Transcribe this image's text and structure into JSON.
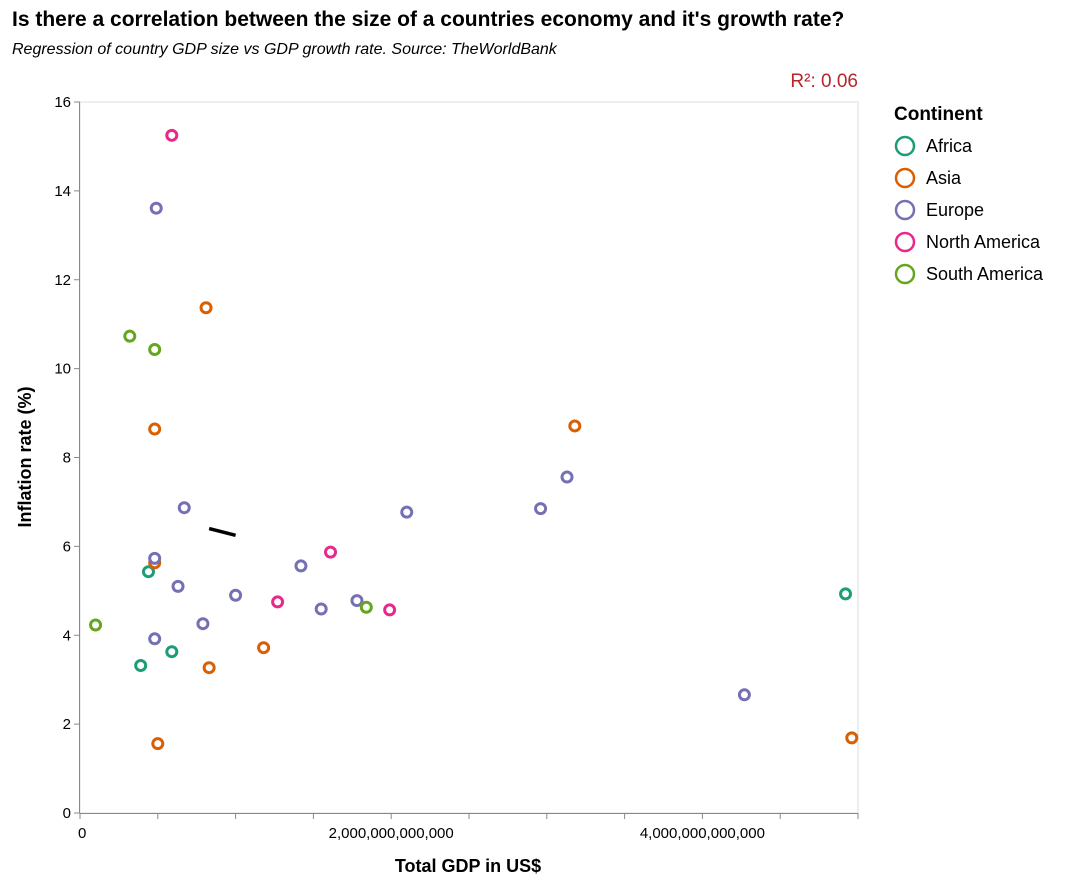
{
  "title": "Is there a correlation between the size of a countries economy and it's growth rate?",
  "subtitle": "Regression of country GDP size vs GDP growth rate. Source: TheWorldBank",
  "chart_data": {
    "type": "scatter",
    "xlabel": "Total GDP in US$",
    "ylabel": "Inflation rate (%)",
    "xlim": [
      0,
      5000000000000
    ],
    "ylim": [
      0,
      16
    ],
    "x_ticks": [
      0,
      500000000000,
      1000000000000,
      1500000000000,
      2000000000000,
      2500000000000,
      3000000000000,
      3500000000000,
      4000000000000,
      4500000000000,
      5000000000000
    ],
    "x_tick_labels": [
      "0",
      "",
      "",
      "",
      "2,000,000,000,000",
      "",
      "",
      "",
      "4,000,000,000,000",
      "",
      ""
    ],
    "y_ticks": [
      0,
      2,
      4,
      6,
      8,
      10,
      12,
      14,
      16
    ],
    "y_tick_labels": [
      "0",
      "2",
      "4",
      "6",
      "8",
      "10",
      "12",
      "14",
      "16"
    ],
    "grid": false,
    "r2_label": "R²: 0.06",
    "regression_line": {
      "x": [
        830000000000,
        1000000000000
      ],
      "y": [
        6.4,
        6.25
      ]
    },
    "legend": {
      "title": "Continent",
      "placement": "right"
    },
    "series": [
      {
        "name": "Africa",
        "color": "#1b9e77",
        "points": [
          [
            390000000000,
            3.32
          ],
          [
            440000000000,
            5.43
          ],
          [
            590000000000,
            3.63
          ],
          [
            4920000000000,
            4.93
          ]
        ]
      },
      {
        "name": "Asia",
        "color": "#d95f02",
        "points": [
          [
            480000000000,
            5.63
          ],
          [
            480000000000,
            8.64
          ],
          [
            500000000000,
            1.56
          ],
          [
            810000000000,
            11.37
          ],
          [
            830000000000,
            3.27
          ],
          [
            1180000000000,
            3.72
          ],
          [
            3180000000000,
            8.71
          ],
          [
            4960000000000,
            1.69
          ]
        ]
      },
      {
        "name": "Europe",
        "color": "#7570b3",
        "points": [
          [
            480000000000,
            5.73
          ],
          [
            490000000000,
            13.61
          ],
          [
            480000000000,
            3.92
          ],
          [
            630000000000,
            5.1
          ],
          [
            670000000000,
            6.87
          ],
          [
            790000000000,
            4.26
          ],
          [
            1000000000000,
            4.9
          ],
          [
            1420000000000,
            5.56
          ],
          [
            1550000000000,
            4.59
          ],
          [
            1780000000000,
            4.78
          ],
          [
            2100000000000,
            6.77
          ],
          [
            2960000000000,
            6.85
          ],
          [
            3130000000000,
            7.56
          ],
          [
            4270000000000,
            2.66
          ]
        ]
      },
      {
        "name": "North America",
        "color": "#e7298a",
        "points": [
          [
            590000000000,
            15.25
          ],
          [
            1270000000000,
            4.75
          ],
          [
            1610000000000,
            5.87
          ],
          [
            1990000000000,
            4.57
          ]
        ]
      },
      {
        "name": "South America",
        "color": "#66a61e",
        "points": [
          [
            100000000000,
            4.23
          ],
          [
            320000000000,
            10.73
          ],
          [
            480000000000,
            10.43
          ],
          [
            1840000000000,
            4.63
          ]
        ]
      }
    ]
  }
}
